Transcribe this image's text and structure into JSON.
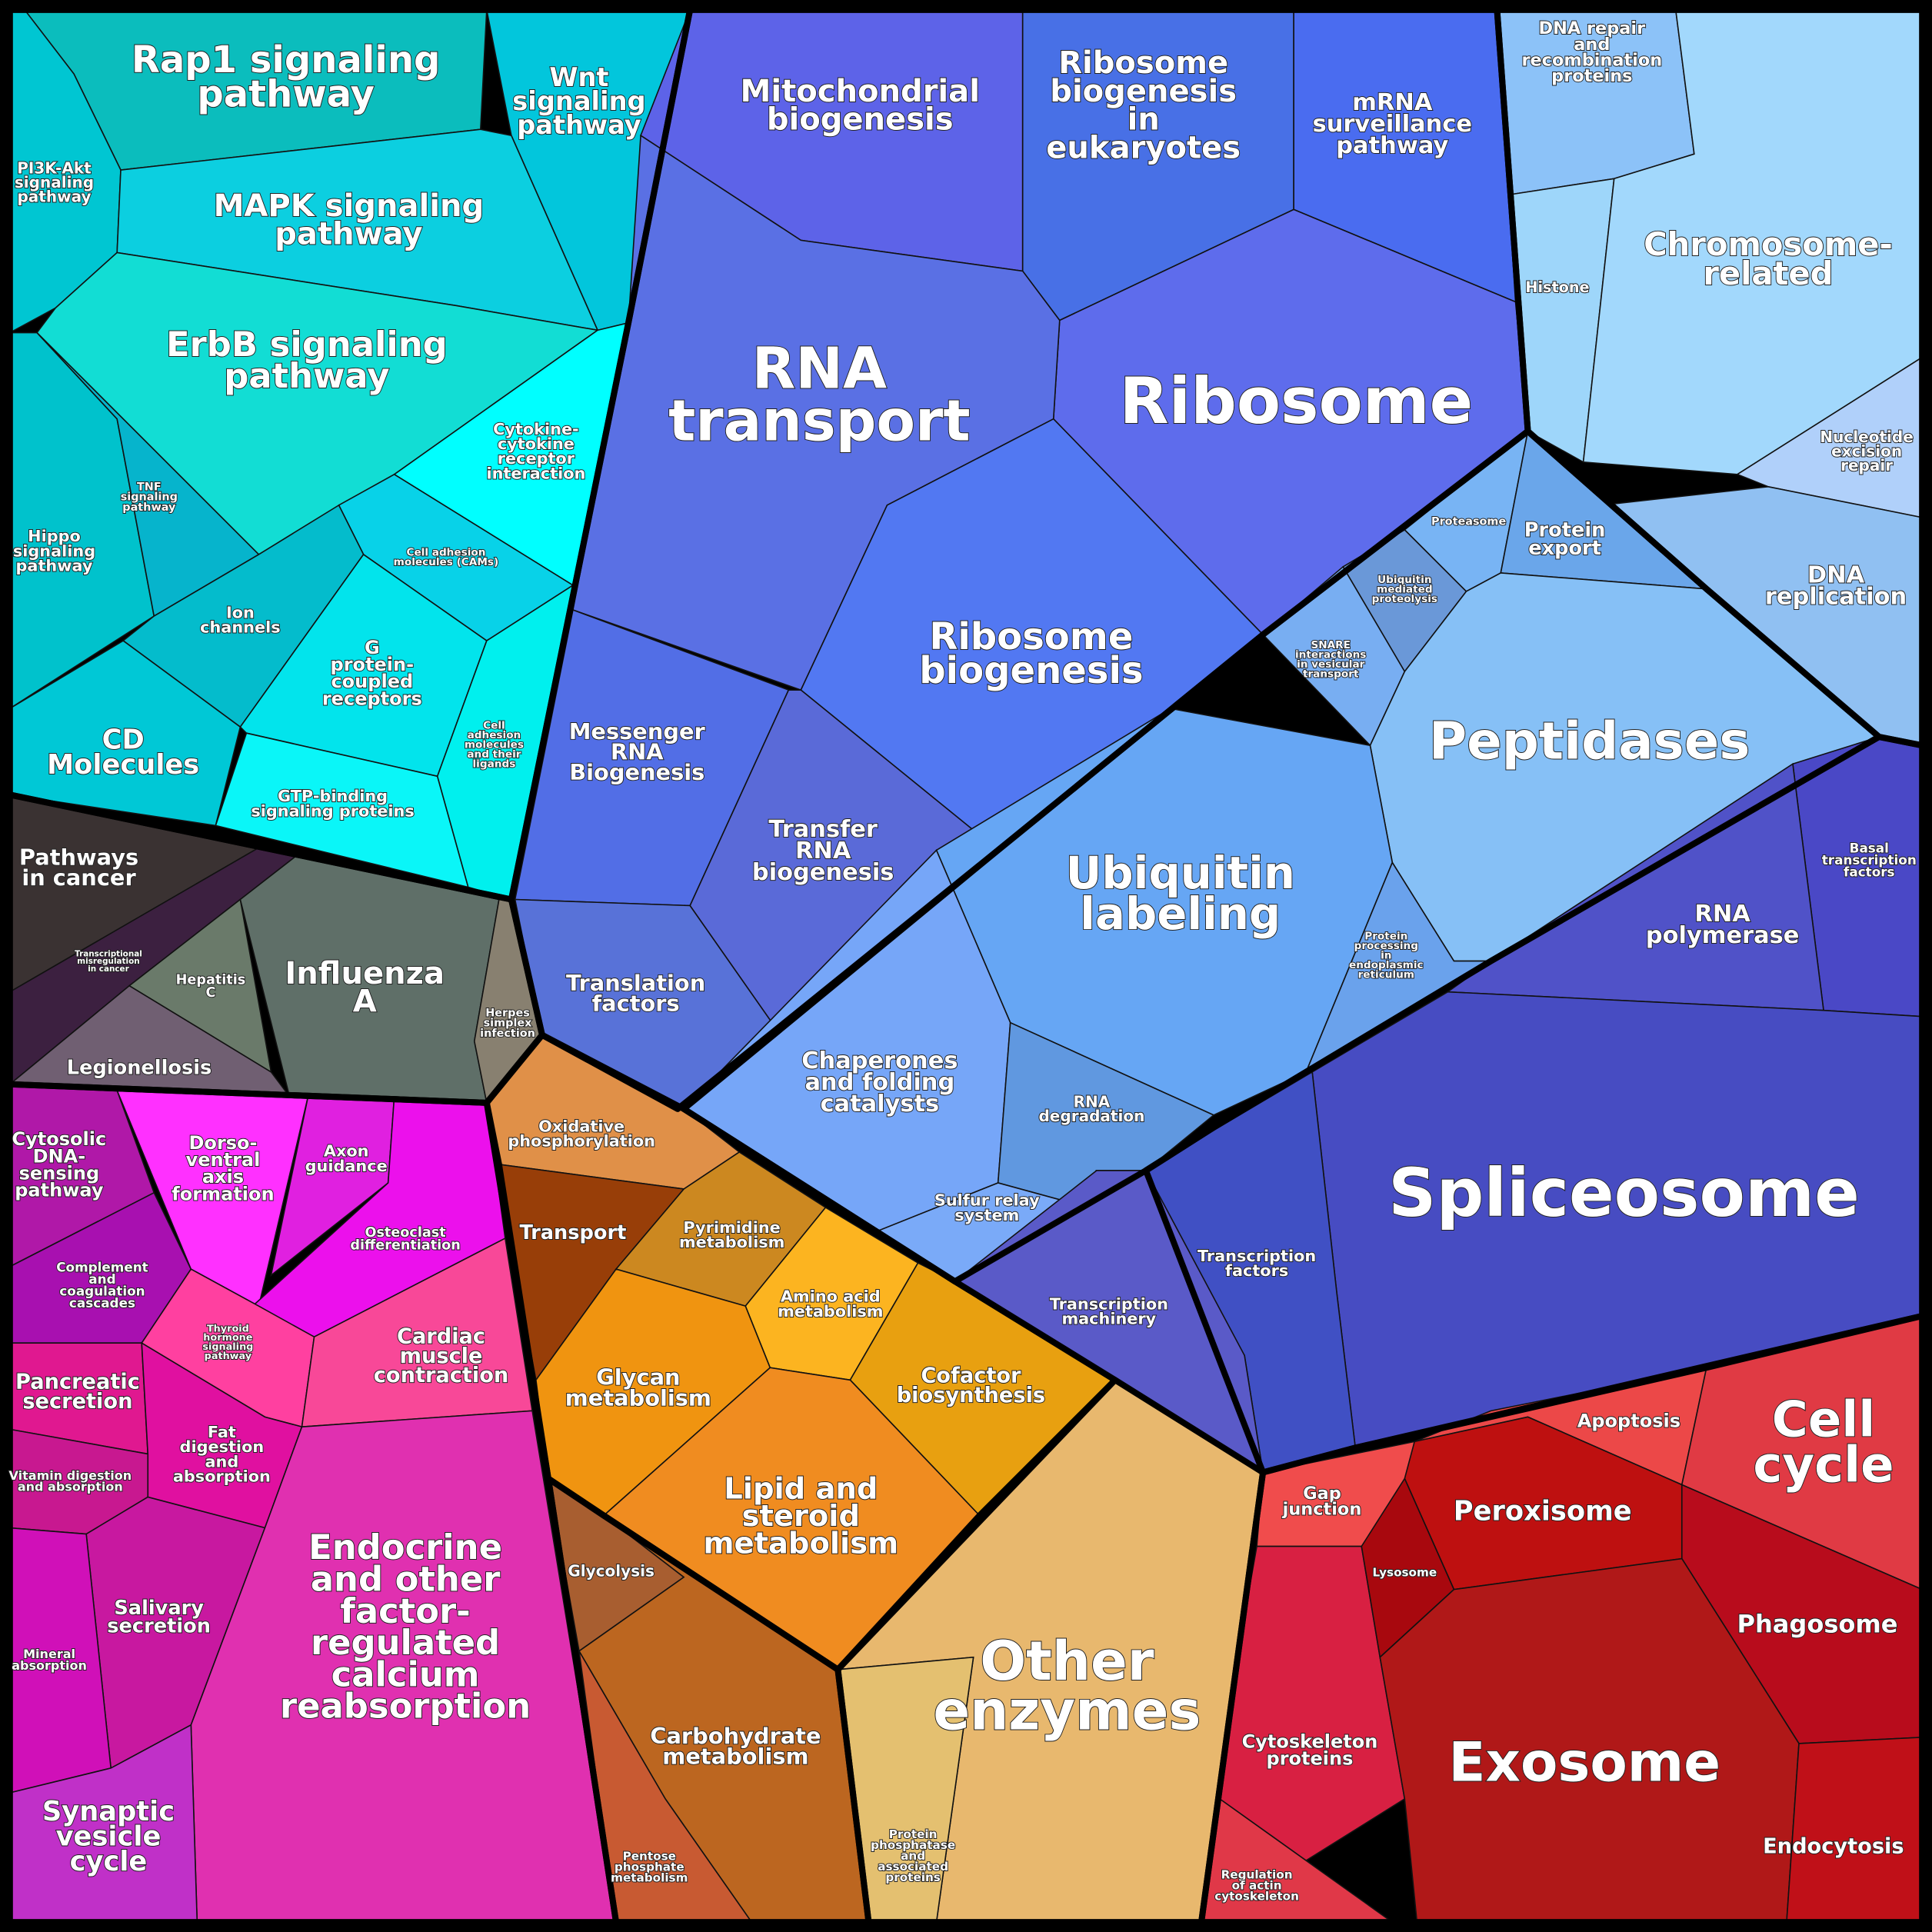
{
  "cells": {
    "rap1": {
      "label": "Rap1 signaling\npathway",
      "color": "#0bbdbd"
    },
    "wnt": {
      "label": "Wnt\nsignaling\npathway",
      "color": "#02c6dc"
    },
    "pi3k": {
      "label": "PI3K-Akt\nsignaling\npathway",
      "color": "#00c6d2"
    },
    "mapk": {
      "label": "MAPK signaling\npathway",
      "color": "#0ccfe0"
    },
    "erbb": {
      "label": "ErbB signaling\npathway",
      "color": "#12ddd4"
    },
    "cytokine": {
      "label": "Cytokine-\ncytokine\nreceptor\ninteraction",
      "color": "#00ffff"
    },
    "hippo": {
      "label": "Hippo\nsignaling\npathway",
      "color": "#00c2cc"
    },
    "tnf": {
      "label": "TNF\nsignaling\npathway",
      "color": "#06b4cc"
    },
    "cams": {
      "label": "Cell adhesion\nmolecules (CAMs)",
      "color": "#08d2e8"
    },
    "ion": {
      "label": "Ion\nchannels",
      "color": "#04bccc"
    },
    "cd": {
      "label": "CD\nMolecules",
      "color": "#00c8d6"
    },
    "gpcr": {
      "label": "G\nprotein-\ncoupled\nreceptors",
      "color": "#02e4ec"
    },
    "gtp": {
      "label": "GTP-binding\nsignaling proteins",
      "color": "#0af6f8"
    },
    "celladh": {
      "label": "Cell\nadhesion\nmolecules\nand their\nligands",
      "color": "#00f0ee"
    },
    "cancer": {
      "label": "Pathways\nin cancer",
      "color": "#3a3232"
    },
    "transmis": {
      "label": "Transcriptional\nmisregulation\nin cancer",
      "color": "#3c2040"
    },
    "legion": {
      "label": "Legionellosis",
      "color": "#705f72"
    },
    "hepc": {
      "label": "Hepatitis\nC",
      "color": "#6a7a6a"
    },
    "influenza": {
      "label": "Influenza\nA",
      "color": "#5f6f68"
    },
    "herpes": {
      "label": "Herpes\nsimplex\ninfection",
      "color": "#888070"
    },
    "mito": {
      "label": "Mitochondrial\nbiogenesis",
      "color": "#5d63e8"
    },
    "ribeuk": {
      "label": "Ribosome\nbiogenesis\nin\neukaryotes",
      "color": "#4870e6"
    },
    "mrna": {
      "label": "mRNA\nsurveillance\npathway",
      "color": "#4a6cf0"
    },
    "ribosome": {
      "label": "Ribosome",
      "color": "#5e6cec"
    },
    "rnatransport": {
      "label": "RNA\ntransport",
      "color": "#5a70e4"
    },
    "ribbio": {
      "label": "Ribosome\nbiogenesis",
      "color": "#5278f2"
    },
    "messenger": {
      "label": "Messenger\nRNA\nBiogenesis",
      "color": "#526ee6"
    },
    "trna": {
      "label": "Transfer\nRNA\nbiogenesis",
      "color": "#5a6ad8"
    },
    "transfac": {
      "label": "Translation\nfactors",
      "color": "#5872d8"
    },
    "dnarepair": {
      "label": "DNA repair\nand\nrecombination\nproteins",
      "color": "#8cc2f8"
    },
    "histone": {
      "label": "Histone",
      "color": "#9ed6fa"
    },
    "chromo": {
      "label": "Chromosome-\nrelated",
      "color": "#a2d8fc"
    },
    "ner": {
      "label": "Nucleotide\nexcision\nrepair",
      "color": "#b0d0fa"
    },
    "dnarep": {
      "label": "DNA\nreplication",
      "color": "#90c0f2"
    },
    "proteasome": {
      "label": "Proteasome",
      "color": "#78b4f4"
    },
    "protexport": {
      "label": "Protein\nexport",
      "color": "#6aa6ea"
    },
    "ubmed": {
      "label": "Ubiquitin\nmediated\nproteolysis",
      "color": "#6a98d8"
    },
    "snare": {
      "label": "SNARE\ninteractions\nin vesicular\ntransport",
      "color": "#78aef2"
    },
    "peptidases": {
      "label": "Peptidases",
      "color": "#86c0f6"
    },
    "ubiq": {
      "label": "Ubiquitin\nlabeling",
      "color": "#66a6f4"
    },
    "proter": {
      "label": "Protein\nprocessing\nin\nendoplasmic\nreticulum",
      "color": "#6aa2ec"
    },
    "chaperones": {
      "label": "Chaperones\nand folding\ncatalysts",
      "color": "#76a6f8"
    },
    "rnadeg": {
      "label": "RNA\ndegradation",
      "color": "#6098e0"
    },
    "sulfur": {
      "label": "Sulfur relay\nsystem",
      "color": "#7aaaf8"
    },
    "basal": {
      "label": "Basal\ntranscription\nfactors",
      "color": "#4a48c6"
    },
    "rnapol": {
      "label": "RNA\npolymerase",
      "color": "#5052c8"
    },
    "spliceosome": {
      "label": "Spliceosome",
      "color": "#474cc2"
    },
    "transcfac": {
      "label": "Transcription\nfactors",
      "color": "#4050c4"
    },
    "transcmach": {
      "label": "Transcription\nmachinery",
      "color": "#5a5ac8"
    },
    "gap": {
      "label": "Gap\njunction",
      "color": "#f04c4c"
    },
    "cytoskel": {
      "label": "Cytoskeleton\nproteins",
      "color": "#d82042"
    },
    "actin": {
      "label": "Regulation\nof actin\ncytoskeleton",
      "color": "#e03848"
    },
    "apoptosis": {
      "label": "Apoptosis",
      "color": "#ec4848"
    },
    "cellcycle": {
      "label": "Cell\ncycle",
      "color": "#e03a44"
    },
    "peroxisome": {
      "label": "Peroxisome",
      "color": "#be1010"
    },
    "lysosome": {
      "label": "Lysosome",
      "color": "#a8080e"
    },
    "phagosome": {
      "label": "Phagosome",
      "color": "#b80c1c"
    },
    "exosome": {
      "label": "Exosome",
      "color": "#b01818"
    },
    "endocytosis": {
      "label": "Endocytosis",
      "color": "#c01018"
    },
    "oxphos": {
      "label": "Oxidative\nphosphorylation",
      "color": "#e09048"
    },
    "transport": {
      "label": "Transport",
      "color": "#983e08"
    },
    "pyrimidine": {
      "label": "Pyrimidine\nmetabolism",
      "color": "#cc8820"
    },
    "amino": {
      "label": "Amino acid\nmetabolism",
      "color": "#fcb420"
    },
    "cofactor": {
      "label": "Cofactor\nbiosynthesis",
      "color": "#e8a010"
    },
    "glycan": {
      "label": "Glycan\nmetabolism",
      "color": "#f09410"
    },
    "lipid": {
      "label": "Lipid and\nsteroid\nmetabolism",
      "color": "#f08c20"
    },
    "glycolysis": {
      "label": "Glycolysis",
      "color": "#a85e30"
    },
    "carbo": {
      "label": "Carbohydrate\nmetabolism",
      "color": "#bc6620"
    },
    "pentose": {
      "label": "Pentose\nphosphate\nmetabolism",
      "color": "#c85a32"
    },
    "otherenz": {
      "label": "Other\nenzymes",
      "color": "#e8b86e"
    },
    "phosphatase": {
      "label": "Protein\nphosphatase\nand\nassociated\nproteins",
      "color": "#e4c070"
    },
    "cytosolic": {
      "label": "Cytosolic\nDNA-\nsensing\npathway",
      "color": "#b018a8"
    },
    "complement": {
      "label": "Complement\nand\ncoagulation\ncascades",
      "color": "#a810b0"
    },
    "dorso": {
      "label": "Dorso-\nventral\naxis\nformation",
      "color": "#ff30ff"
    },
    "axon": {
      "label": "Axon\nguidance",
      "color": "#e020e0"
    },
    "osteo": {
      "label": "Osteoclast\ndifferentiation",
      "color": "#ec10ec"
    },
    "thyroid": {
      "label": "Thyroid\nhormone\nsignaling\npathway",
      "color": "#ff40a0"
    },
    "cardiac": {
      "label": "Cardiac\nmuscle\ncontraction",
      "color": "#f84898"
    },
    "pancreatic": {
      "label": "Pancreatic\nsecretion",
      "color": "#e01890"
    },
    "fat": {
      "label": "Fat\ndigestion\nand\nabsorption",
      "color": "#e010a0"
    },
    "vitamin": {
      "label": "Vitamin digestion\nand absorption",
      "color": "#c81890"
    },
    "salivary": {
      "label": "Salivary\nsecretion",
      "color": "#c818a0"
    },
    "mineral": {
      "label": "Mineral\nabsorption",
      "color": "#d010b8"
    },
    "endocrine": {
      "label": "Endocrine\nand other\nfactor-\nregulated\ncalcium\nreabsorption",
      "color": "#e030b0"
    },
    "synaptic": {
      "label": "Synaptic\nvesicle\ncycle",
      "color": "#c030c8"
    }
  }
}
